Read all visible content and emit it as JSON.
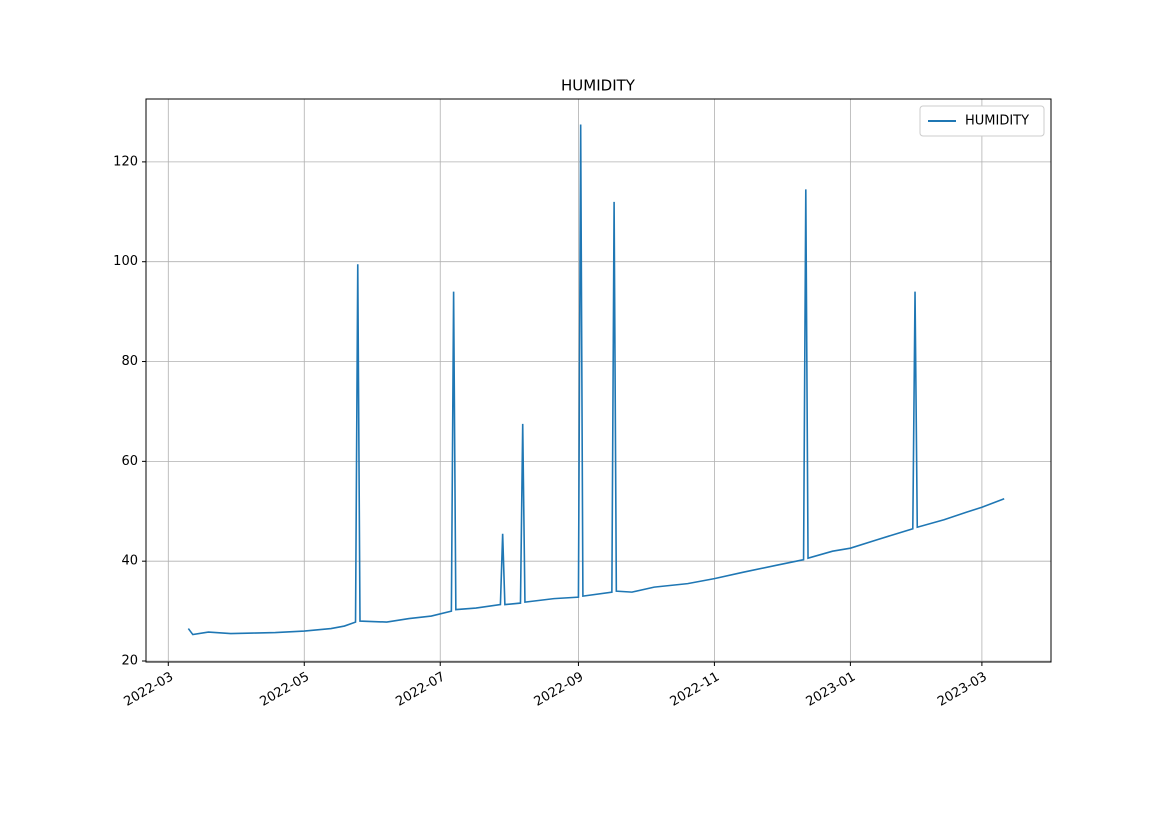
{
  "chart_data": {
    "type": "line",
    "title": "HUMIDITY",
    "x": [
      19061,
      19063,
      19070,
      19080,
      19090,
      19100,
      19113,
      19125,
      19131,
      19136,
      19137,
      19138,
      19150,
      19160,
      19170,
      19179,
      19180,
      19181,
      19190,
      19201,
      19202,
      19203,
      19210,
      19211,
      19212,
      19225,
      19236,
      19237,
      19238,
      19251,
      19252,
      19253,
      19260,
      19270,
      19285,
      19297,
      19310,
      19325,
      19337,
      19338,
      19339,
      19350,
      19358,
      19370,
      19386,
      19387,
      19388,
      19400,
      19410,
      19417,
      19427
    ],
    "series": [
      {
        "name": "HUMIDITY",
        "color": "#1f77b4",
        "values": [
          26.5,
          25.3,
          25.8,
          25.5,
          25.6,
          25.7,
          26,
          26.5,
          27,
          27.8,
          99.5,
          28,
          27.8,
          28.5,
          29,
          30,
          94,
          30.3,
          30.6,
          31.3,
          45.5,
          31.3,
          31.6,
          67.5,
          31.8,
          32.5,
          32.8,
          127.5,
          33,
          33.8,
          112,
          34,
          33.8,
          34.8,
          35.5,
          36.5,
          37.8,
          39.2,
          40.3,
          114.5,
          40.6,
          42,
          42.6,
          44.3,
          46.5,
          94,
          46.8,
          48.3,
          49.8,
          50.8,
          52.5
        ]
      }
    ],
    "xlim": [
      19042,
      19448
    ],
    "xticks": [
      {
        "value": 19052,
        "label": "2022-03"
      },
      {
        "value": 19113,
        "label": "2022-05"
      },
      {
        "value": 19174,
        "label": "2022-07"
      },
      {
        "value": 19236,
        "label": "2022-09"
      },
      {
        "value": 19297,
        "label": "2022-11"
      },
      {
        "value": 19358,
        "label": "2023-01"
      },
      {
        "value": 19417,
        "label": "2023-03"
      }
    ],
    "ylim": [
      19.8,
      132.6
    ],
    "yticks": [
      20,
      40,
      60,
      80,
      100,
      120
    ],
    "grid": true,
    "legend": "upper-right"
  }
}
